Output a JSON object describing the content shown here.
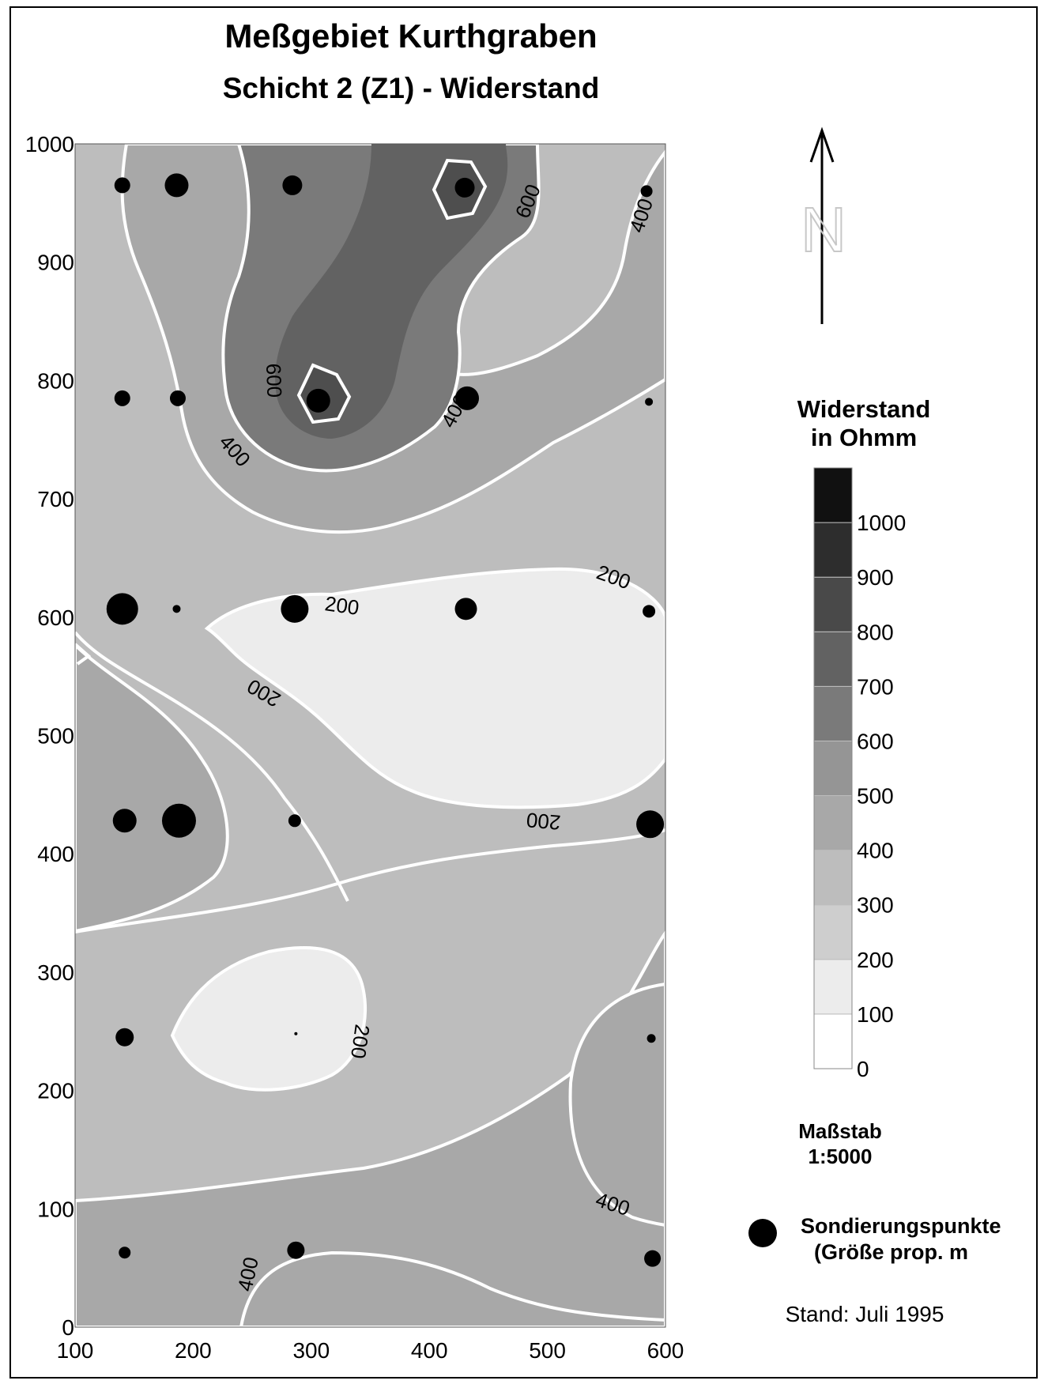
{
  "title": "Meßgebiet Kurthgraben",
  "subtitle": "Schicht 2 (Z1) - Widerstand",
  "axes": {
    "x_ticks": [
      "100",
      "200",
      "300",
      "400",
      "500",
      "600"
    ],
    "y_ticks": [
      "0",
      "100",
      "200",
      "300",
      "400",
      "500",
      "600",
      "700",
      "800",
      "900",
      "1000"
    ],
    "xlim": [
      100,
      600
    ],
    "ylim": [
      0,
      1000
    ]
  },
  "north_label": "N",
  "legend": {
    "title_line1": "Widerstand",
    "title_line2": "in Ohmm",
    "levels": [
      "0",
      "100",
      "200",
      "300",
      "400",
      "500",
      "600",
      "700",
      "800",
      "900",
      "1000"
    ],
    "colors": [
      "#ffffff",
      "#ececec",
      "#cecece",
      "#bdbdbd",
      "#a8a8a8",
      "#959595",
      "#7a7a7a",
      "#626262",
      "#494949",
      "#2d2d2d",
      "#111111"
    ]
  },
  "scale_title": "Maßstab",
  "scale_value": "1:5000",
  "points_legend_line1": "Sondierungspunkte",
  "points_legend_line2": "(Größe prop. m",
  "status": "Stand: Juli 1995",
  "contour_labels": [
    "600",
    "400",
    "600",
    "400",
    "400",
    "200",
    "200",
    "200",
    "200",
    "200",
    "400",
    "400"
  ],
  "chart_data": {
    "type": "contour-map",
    "quantity": "Widerstand",
    "unit": "Ohmm",
    "contour_levels": [
      200,
      400,
      600
    ],
    "sounding_points": [
      {
        "x": 140,
        "y": 965,
        "size": 2
      },
      {
        "x": 186,
        "y": 965,
        "size": 3
      },
      {
        "x": 284,
        "y": 965,
        "size": 2.5
      },
      {
        "x": 430,
        "y": 963,
        "size": 2.5
      },
      {
        "x": 584,
        "y": 960,
        "size": 1.5
      },
      {
        "x": 140,
        "y": 785,
        "size": 2
      },
      {
        "x": 187,
        "y": 785,
        "size": 2
      },
      {
        "x": 306,
        "y": 783,
        "size": 3
      },
      {
        "x": 432,
        "y": 785,
        "size": 3
      },
      {
        "x": 586,
        "y": 782,
        "size": 1
      },
      {
        "x": 140,
        "y": 607,
        "size": 4
      },
      {
        "x": 186,
        "y": 607,
        "size": 1
      },
      {
        "x": 286,
        "y": 607,
        "size": 3.5
      },
      {
        "x": 431,
        "y": 607,
        "size": 2.8
      },
      {
        "x": 586,
        "y": 605,
        "size": 1.6
      },
      {
        "x": 142,
        "y": 428,
        "size": 3
      },
      {
        "x": 188,
        "y": 428,
        "size": 4.3
      },
      {
        "x": 286,
        "y": 428,
        "size": 1.6
      },
      {
        "x": 587,
        "y": 425,
        "size": 3.5
      },
      {
        "x": 142,
        "y": 245,
        "size": 2.3
      },
      {
        "x": 287,
        "y": 248,
        "size": 0.3
      },
      {
        "x": 588,
        "y": 244,
        "size": 1.1
      },
      {
        "x": 142,
        "y": 63,
        "size": 1.5
      },
      {
        "x": 287,
        "y": 65,
        "size": 2.2
      },
      {
        "x": 589,
        "y": 58,
        "size": 2.1
      }
    ]
  }
}
